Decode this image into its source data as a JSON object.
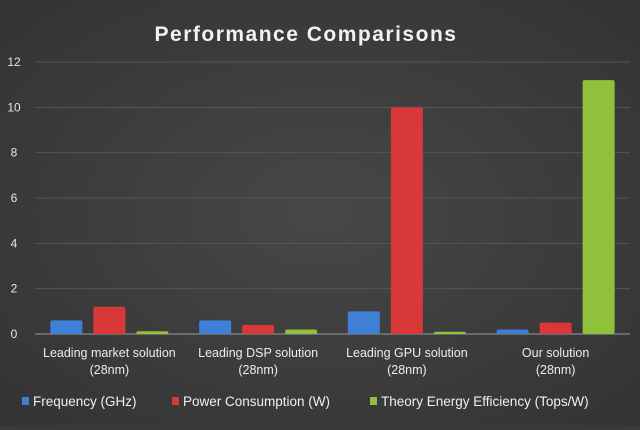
{
  "chart_data": {
    "type": "bar",
    "title": "Performance Comparisons",
    "xlabel": "",
    "ylabel": "",
    "ylim": [
      0,
      12
    ],
    "yticks": [
      0,
      2,
      4,
      6,
      8,
      10,
      12
    ],
    "grid": true,
    "legend_position": "bottom",
    "categories": [
      [
        "Leading market solution",
        "(28nm)"
      ],
      [
        "Leading DSP solution",
        "(28nm)"
      ],
      [
        "Leading GPU solution",
        "(28nm)"
      ],
      [
        "Our solution",
        "(28nm)"
      ]
    ],
    "series": [
      {
        "name": "Frequency (GHz)",
        "color": "#3f7fd6",
        "values": [
          0.6,
          0.6,
          1.0,
          0.2
        ]
      },
      {
        "name": "Power Consumption  (W)",
        "color": "#d93838",
        "values": [
          1.2,
          0.4,
          10.0,
          0.5
        ]
      },
      {
        "name": "Theory Energy Efficiency (Tops/W)",
        "color": "#8fc23a",
        "values": [
          0.12,
          0.2,
          0.1,
          11.2
        ]
      }
    ]
  }
}
